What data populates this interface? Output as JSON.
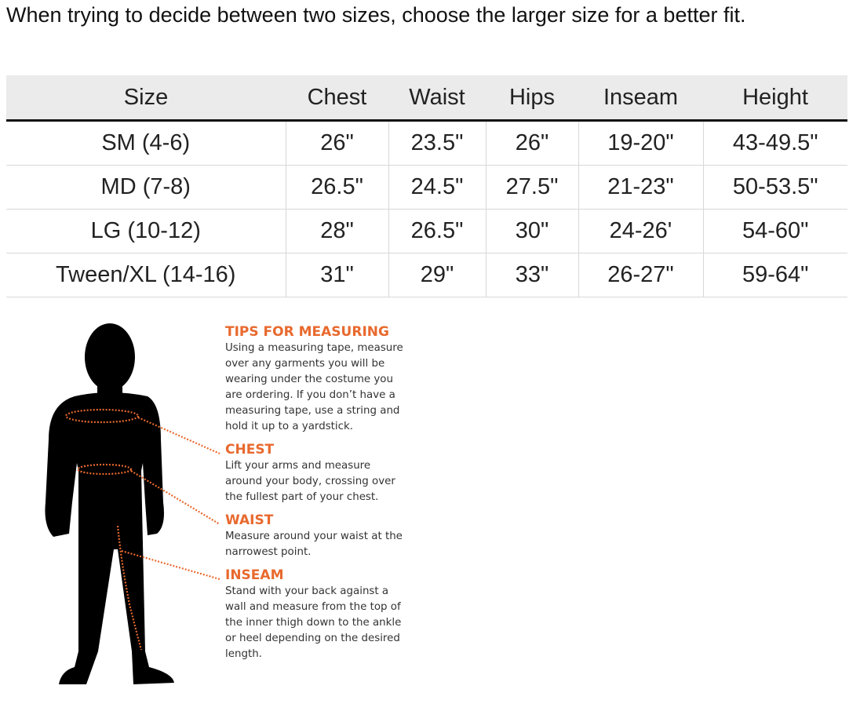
{
  "intro": "When trying to decide between two sizes, choose the larger size for a better fit.",
  "table": {
    "header": [
      "Size",
      "Chest",
      "Waist",
      "Hips",
      "Inseam",
      "Height"
    ],
    "rows": [
      [
        "SM (4-6)",
        "26\"",
        "23.5\"",
        "26\"",
        "19-20\"",
        "43-49.5\""
      ],
      [
        "MD (7-8)",
        "26.5\"",
        "24.5\"",
        "27.5\"",
        "21-23\"",
        "50-53.5\""
      ],
      [
        "LG (10-12)",
        "28\"",
        "26.5\"",
        "30\"",
        "24-26'",
        "54-60\""
      ],
      [
        "Tween/XL (14-16)",
        "31\"",
        "29\"",
        "33\"",
        "26-27\"",
        "59-64\""
      ]
    ]
  },
  "tips": {
    "title": "TIPS FOR MEASURING",
    "text": "Using a measuring tape, measure over any garments you will be wearing under the costume you are ordering. If you don’t have a measuring tape, use a string and hold it up to a yardstick.",
    "sections": [
      {
        "heading": "CHEST",
        "text": "Lift your arms and measure around your body, crossing over the fullest part of your chest."
      },
      {
        "heading": "WAIST",
        "text": "Measure around your waist at the narrowest point."
      },
      {
        "heading": "INSEAM",
        "text": "Stand with your back against a wall and measure from the top of the inner thigh down to the ankle or heel depending on the desired length."
      }
    ]
  }
}
